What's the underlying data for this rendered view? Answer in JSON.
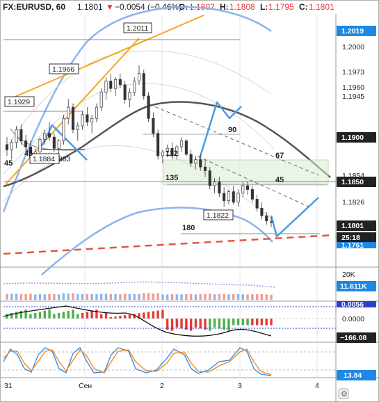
{
  "header": {
    "symbol": "FX:EURUSD, 60",
    "last": "1.1801",
    "change": "−0.0054 (−0.46%)",
    "o_label": "O:",
    "o_val": "1.1802",
    "h_label": "H:",
    "h_val": "1.1808",
    "l_label": "L:",
    "l_val": "1.1795",
    "c_label": "C:",
    "c_val": "1.1801"
  },
  "colors": {
    "up": "#4caf50",
    "down": "#e53935",
    "accent_blue": "#1e88e5",
    "channel_orange": "#f5a623",
    "ma_dark": "#555555",
    "bollinger": "#8ab4f0",
    "support_red": "#e0573a"
  },
  "price_axis": {
    "ticks": [
      "1.2000",
      "1.1973",
      "1.1945",
      "1.1850",
      "1.1826",
      "1.1801"
    ],
    "tags": [
      {
        "value": "1.2019",
        "style": "blue"
      },
      {
        "value": "1.1900",
        "style": "dark"
      },
      {
        "value": "1.1850",
        "style": "dark"
      },
      {
        "value": "1.1801",
        "style": "dark"
      },
      {
        "value": "25:18",
        "style": "dark"
      }
    ],
    "partial_tags": [
      {
        "value": "1.1761",
        "style": "blue"
      },
      {
        "value": "1.1854",
        "style": "plain"
      }
    ]
  },
  "callouts": [
    "1.2011",
    "1.1966",
    "1.1929",
    "1.1884",
    "1.1822",
    "1.1883"
  ],
  "fib_labels": [
    "45",
    "45",
    "90",
    "112",
    "67",
    "135",
    "45",
    "180"
  ],
  "volume_pane": {
    "axis_label": "20K",
    "tag": "11.611K"
  },
  "macd_pane": {
    "axis_label": "0.0000",
    "tag_top": "0.0056",
    "tag_bottom": "−166.08"
  },
  "stoch_pane": {
    "tag": "13.84"
  },
  "time_axis": {
    "labels": [
      "31",
      "Сен",
      "2",
      "3",
      "4"
    ]
  },
  "chart_data": {
    "type": "candlestick",
    "symbol": "FX:EURUSD",
    "interval": "60",
    "ylim": [
      1.1745,
      1.2075
    ],
    "x_labels": [
      "31",
      "Сен",
      "2",
      "3",
      "4"
    ],
    "candles": [
      [
        1.1905,
        1.1915,
        1.189,
        1.1898
      ],
      [
        1.1898,
        1.1912,
        1.1885,
        1.1908
      ],
      [
        1.1908,
        1.193,
        1.19,
        1.1925
      ],
      [
        1.1925,
        1.1932,
        1.1905,
        1.191
      ],
      [
        1.191,
        1.1918,
        1.1895,
        1.1902
      ],
      [
        1.1902,
        1.191,
        1.188,
        1.1888
      ],
      [
        1.1888,
        1.19,
        1.1883,
        1.1895
      ],
      [
        1.1895,
        1.1915,
        1.189,
        1.1912
      ],
      [
        1.1912,
        1.1925,
        1.1905,
        1.192
      ],
      [
        1.192,
        1.1935,
        1.191,
        1.1915
      ],
      [
        1.1915,
        1.192,
        1.1895,
        1.19
      ],
      [
        1.19,
        1.1912,
        1.1893,
        1.191
      ],
      [
        1.191,
        1.1945,
        1.1905,
        1.194
      ],
      [
        1.194,
        1.1966,
        1.1932,
        1.1955
      ],
      [
        1.1955,
        1.196,
        1.192,
        1.1925
      ],
      [
        1.1925,
        1.1935,
        1.191,
        1.193
      ],
      [
        1.193,
        1.195,
        1.1925,
        1.1945
      ],
      [
        1.1945,
        1.1955,
        1.193,
        1.1935
      ],
      [
        1.1935,
        1.1945,
        1.192,
        1.194
      ],
      [
        1.194,
        1.196,
        1.1935,
        1.1955
      ],
      [
        1.1955,
        1.198,
        1.195,
        1.1975
      ],
      [
        1.1975,
        1.1995,
        1.1965,
        1.199
      ],
      [
        1.199,
        1.2,
        1.1975,
        1.198
      ],
      [
        1.198,
        1.1995,
        1.197,
        1.1992
      ],
      [
        1.1992,
        1.2,
        1.198,
        1.1985
      ],
      [
        1.1985,
        1.199,
        1.196,
        1.1965
      ],
      [
        1.1965,
        1.198,
        1.1955,
        1.1975
      ],
      [
        1.1975,
        1.1995,
        1.197,
        1.199
      ],
      [
        1.199,
        1.2011,
        1.1985,
        1.2
      ],
      [
        1.2,
        1.2005,
        1.1965,
        1.197
      ],
      [
        1.197,
        1.1975,
        1.1935,
        1.194
      ],
      [
        1.194,
        1.1948,
        1.1915,
        1.192
      ],
      [
        1.192,
        1.1925,
        1.1885,
        1.189
      ],
      [
        1.189,
        1.1898,
        1.188,
        1.1895
      ],
      [
        1.1895,
        1.1905,
        1.1888,
        1.19
      ],
      [
        1.19,
        1.1908,
        1.1885,
        1.189
      ],
      [
        1.189,
        1.1905,
        1.1885,
        1.1902
      ],
      [
        1.1902,
        1.1915,
        1.1895,
        1.191
      ],
      [
        1.191,
        1.1912,
        1.189,
        1.1892
      ],
      [
        1.1892,
        1.1898,
        1.1875,
        1.188
      ],
      [
        1.188,
        1.189,
        1.1872,
        1.1885
      ],
      [
        1.1885,
        1.1892,
        1.187,
        1.1875
      ],
      [
        1.1875,
        1.1885,
        1.1862,
        1.187
      ],
      [
        1.187,
        1.1875,
        1.1845,
        1.185
      ],
      [
        1.185,
        1.186,
        1.184,
        1.1855
      ],
      [
        1.1855,
        1.1862,
        1.1835,
        1.184
      ],
      [
        1.184,
        1.1848,
        1.1822,
        1.183
      ],
      [
        1.183,
        1.1845,
        1.1825,
        1.1842
      ],
      [
        1.1842,
        1.185,
        1.1825,
        1.1828
      ],
      [
        1.1828,
        1.1845,
        1.1822,
        1.184
      ],
      [
        1.184,
        1.1855,
        1.1835,
        1.185
      ],
      [
        1.185,
        1.1855,
        1.1838,
        1.1845
      ],
      [
        1.1845,
        1.185,
        1.1828,
        1.1832
      ],
      [
        1.1832,
        1.1838,
        1.1815,
        1.182
      ],
      [
        1.182,
        1.1828,
        1.1805,
        1.181
      ],
      [
        1.181,
        1.1815,
        1.1798,
        1.1803
      ],
      [
        1.1802,
        1.1808,
        1.1795,
        1.1801
      ]
    ]
  }
}
